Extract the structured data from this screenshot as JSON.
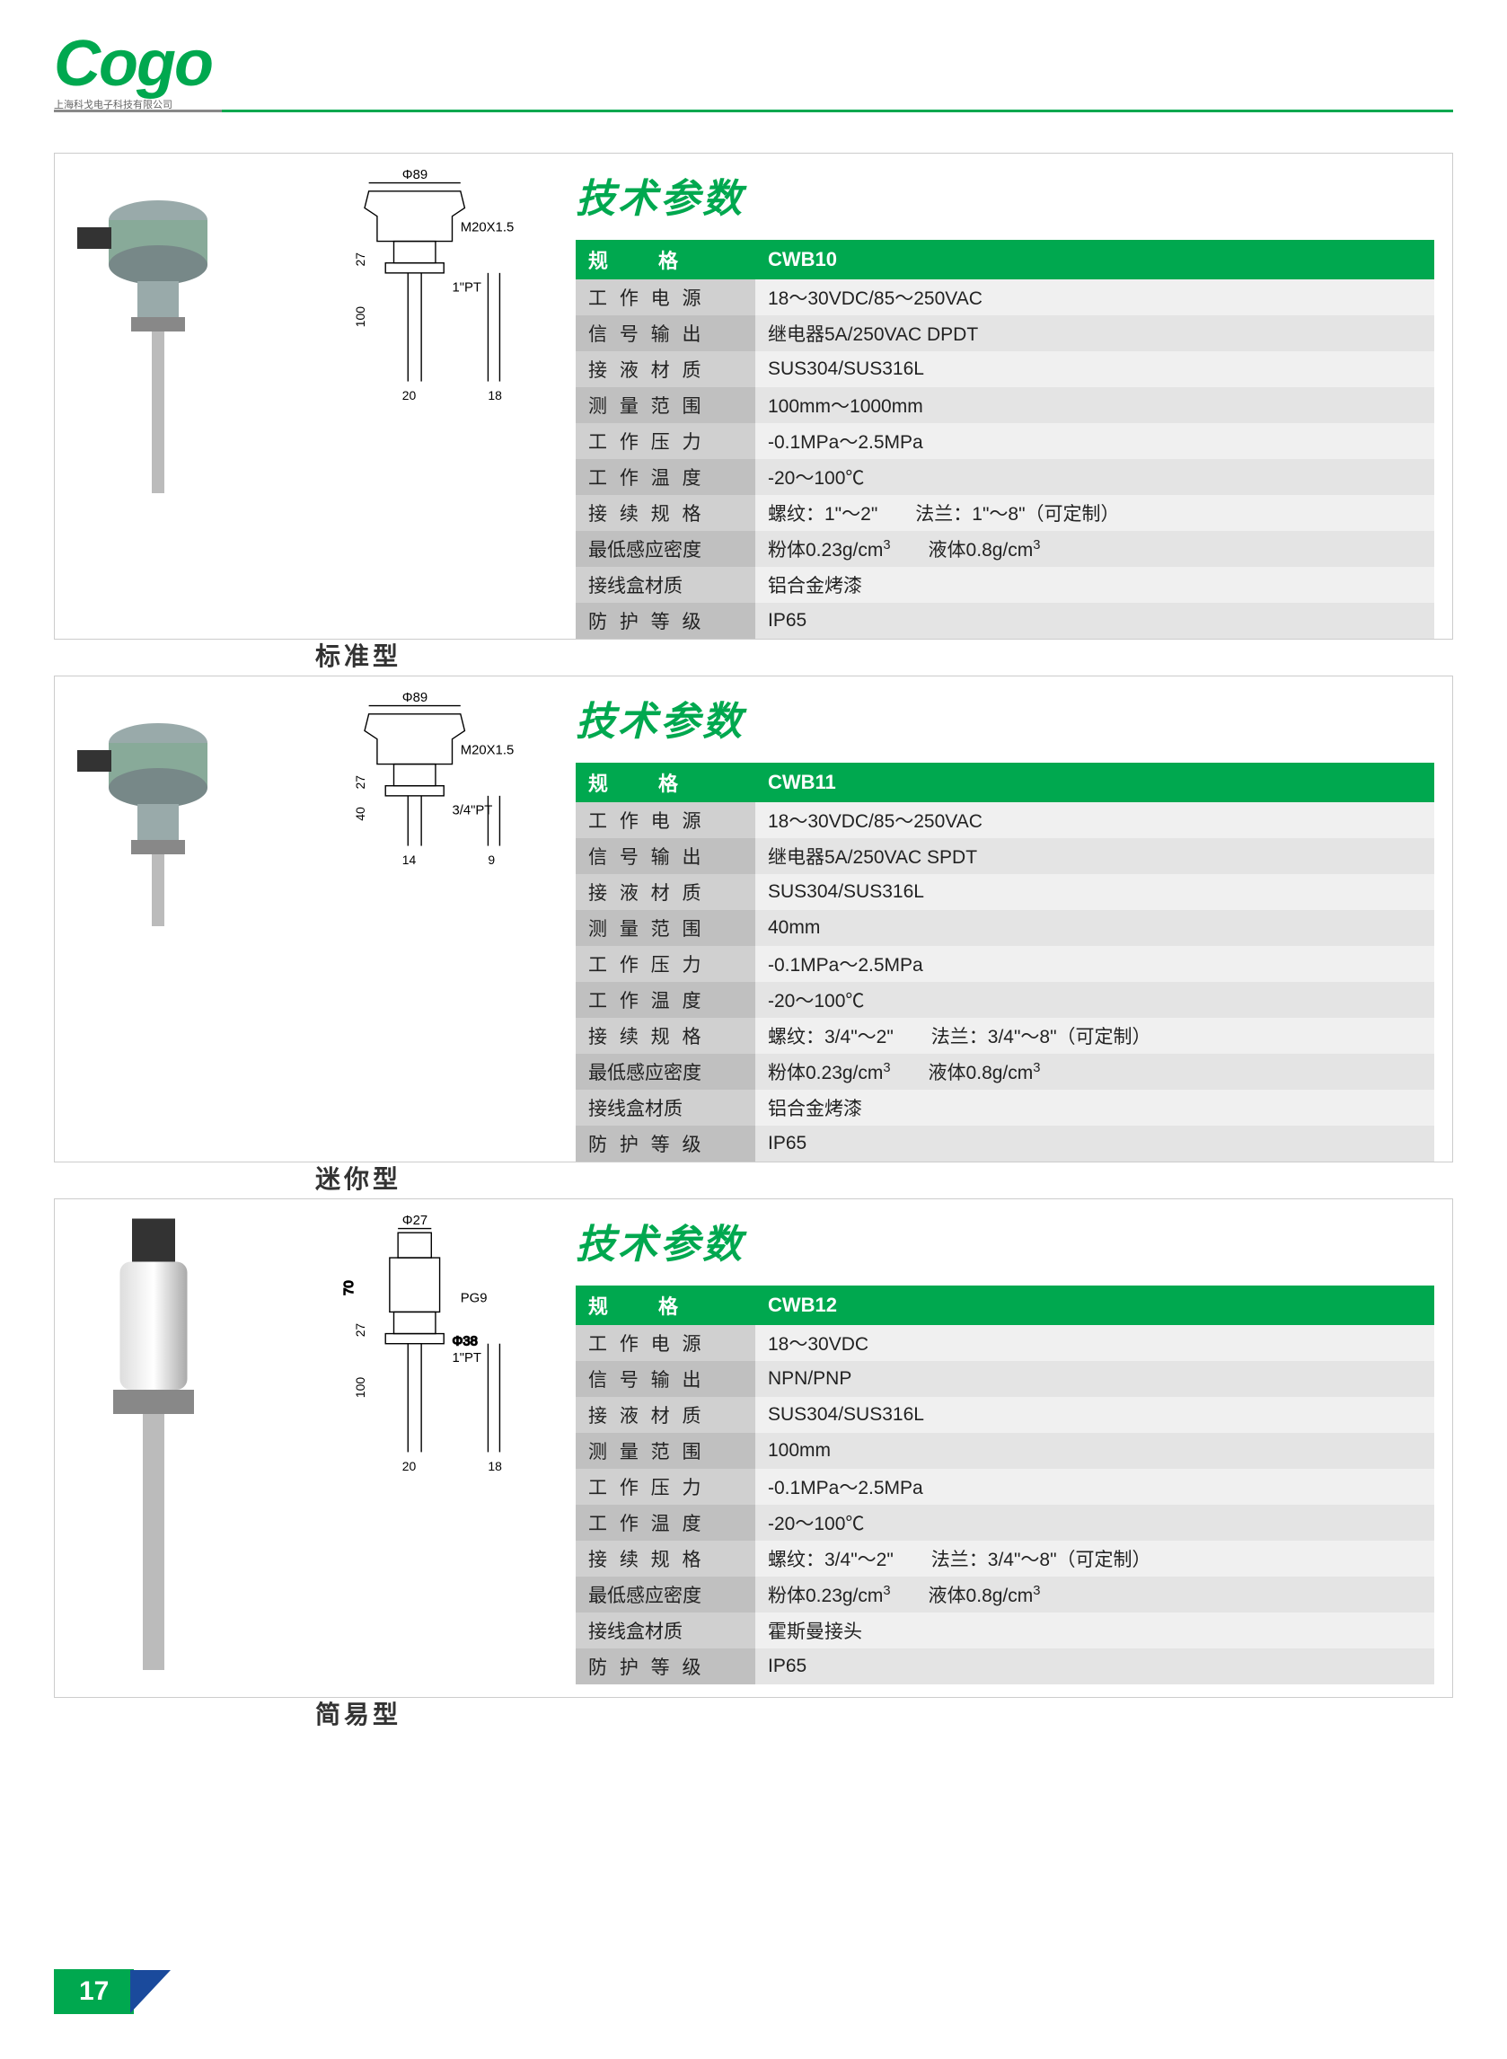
{
  "brand": "Cogo",
  "brand_sub": "上海科戈电子科技有限公司",
  "section_title": "技术参数",
  "page_number": "17",
  "colors": {
    "accent": "#00a84f",
    "accent_dark": "#1a4a9c",
    "label_bg_a": "#c0c0c0",
    "label_bg_b": "#d0d0d0",
    "value_bg_a": "#e4e4e4",
    "value_bg_b": "#f0f0f0"
  },
  "spec_header_label": "规　　格",
  "products": [
    {
      "type_label": "标准型",
      "model": "CWB10",
      "drawing": {
        "top_dim": "Φ89",
        "thread": "M20X1.5",
        "port": "1\"PT",
        "h1": "27",
        "h2": "100",
        "w1": "20",
        "w2": "18"
      },
      "rows": [
        {
          "label": "工 作 电 源",
          "value": "18～30VDC/85～250VAC"
        },
        {
          "label": "信 号 输 出",
          "value": "继电器5A/250VAC DPDT"
        },
        {
          "label": "接 液 材 质",
          "value": "SUS304/SUS316L"
        },
        {
          "label": "测 量 范 围",
          "value": "100mm～1000mm"
        },
        {
          "label": "工 作 压 力",
          "value": "-0.1MPa～2.5MPa"
        },
        {
          "label": "工 作 温 度",
          "value": "-20～100℃"
        },
        {
          "label": "接 续 规 格",
          "value": "螺纹：1\"～2\"　　法兰：1\"～8\"（可定制）"
        },
        {
          "label": "最低感应密度",
          "tight": true,
          "value_html": "粉体0.23g/cm<sup>3</sup>　　液体0.8g/cm<sup>3</sup>"
        },
        {
          "label": "接线盒材质",
          "tight": true,
          "value": "铝合金烤漆"
        },
        {
          "label": "防 护 等 级",
          "value": "IP65"
        }
      ]
    },
    {
      "type_label": "迷你型",
      "model": "CWB11",
      "drawing": {
        "top_dim": "Φ89",
        "thread": "M20X1.5",
        "port": "3/4\"PT",
        "h1": "27",
        "h2": "40",
        "w1": "14",
        "w2": "9"
      },
      "rows": [
        {
          "label": "工 作 电 源",
          "value": "18～30VDC/85～250VAC"
        },
        {
          "label": "信 号 输 出",
          "value": "继电器5A/250VAC SPDT"
        },
        {
          "label": "接 液 材 质",
          "value": "SUS304/SUS316L"
        },
        {
          "label": "测 量 范 围",
          "value": "40mm"
        },
        {
          "label": "工 作 压 力",
          "value": "-0.1MPa～2.5MPa"
        },
        {
          "label": "工 作 温 度",
          "value": "-20～100℃"
        },
        {
          "label": "接 续 规 格",
          "value": "螺纹：3/4\"～2\"　　法兰：3/4\"～8\"（可定制）"
        },
        {
          "label": "最低感应密度",
          "tight": true,
          "value_html": "粉体0.23g/cm<sup>3</sup>　　液体0.8g/cm<sup>3</sup>"
        },
        {
          "label": "接线盒材质",
          "tight": true,
          "value": "铝合金烤漆"
        },
        {
          "label": "防 护 等 级",
          "value": "IP65"
        }
      ]
    },
    {
      "type_label": "简易型",
      "model": "CWB12",
      "drawing": {
        "top_dim": "Φ27",
        "thread": "PG9",
        "port": "1\"PT",
        "extra_dim": "Φ38",
        "h0": "70",
        "h1": "27",
        "h2": "100",
        "w1": "20",
        "w2": "18"
      },
      "rows": [
        {
          "label": "工 作 电 源",
          "value": "18～30VDC"
        },
        {
          "label": "信 号 输 出",
          "value": "NPN/PNP"
        },
        {
          "label": "接 液 材 质",
          "value": "SUS304/SUS316L"
        },
        {
          "label": "测 量 范 围",
          "value": "100mm"
        },
        {
          "label": "工 作 压 力",
          "value": "-0.1MPa～2.5MPa"
        },
        {
          "label": "工 作 温 度",
          "value": "-20～100℃"
        },
        {
          "label": "接 续 规 格",
          "value": "螺纹：3/4\"～2\"　　法兰：3/4\"～8\"（可定制）"
        },
        {
          "label": "最低感应密度",
          "tight": true,
          "value_html": "粉体0.23g/cm<sup>3</sup>　　液体0.8g/cm<sup>3</sup>"
        },
        {
          "label": "接线盒材质",
          "tight": true,
          "value": "霍斯曼接头"
        },
        {
          "label": "防 护 等 级",
          "value": "IP65"
        }
      ]
    }
  ]
}
